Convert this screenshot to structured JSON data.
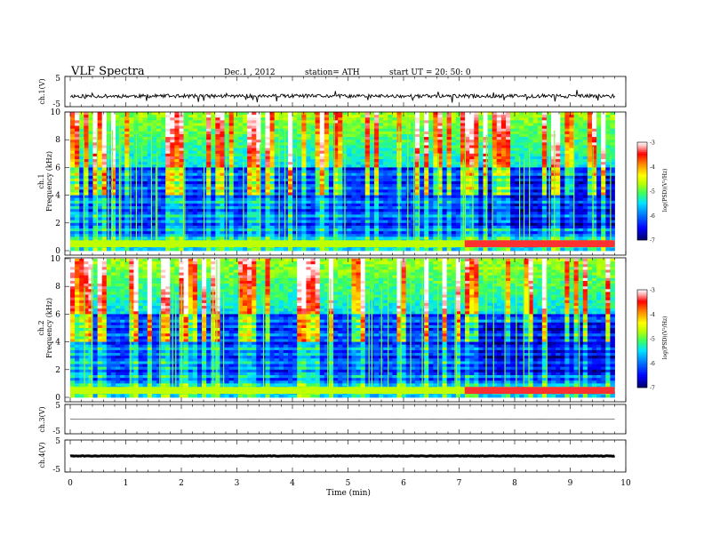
{
  "header": {
    "title": "VLF  Spectra",
    "date": "Dec.1  , 2012",
    "station": "station= ATH",
    "start": "start  UT =   20: 50: 0"
  },
  "chart_data": [
    {
      "type": "line",
      "panel": "ch1-waveform",
      "ylabel": "ch.1(V)",
      "ylim": [
        -5,
        5
      ],
      "y_ticks": [
        "5",
        "-5"
      ],
      "x_range_min": [
        0,
        9.8
      ],
      "baseline": -1.5
    },
    {
      "type": "heatmap",
      "panel": "ch1-spectrogram",
      "ylabel": "ch.1\nFrequency  (kHz)",
      "ylim": [
        0,
        10
      ],
      "y_ticks": [
        "10",
        "8",
        "6",
        "4",
        "2",
        "0"
      ],
      "x_range_min": [
        0,
        9.8
      ],
      "colorbar": {
        "label": "log(PSD)(V²/Hz)",
        "range": [
          -7,
          -3
        ],
        "ticks": [
          "-3",
          "-4",
          "-5",
          "-6",
          "-7"
        ],
        "colors": [
          "#000066",
          "#0000ff",
          "#00a0ff",
          "#00ffff",
          "#40ff40",
          "#c0ff00",
          "#ffff00",
          "#ff8000",
          "#ff0000",
          "#ffc0c0",
          "#ffffff"
        ]
      },
      "features": {
        "strong_line_khz": 0.5,
        "band_change_min": 7.1
      }
    },
    {
      "type": "heatmap",
      "panel": "ch2-spectrogram",
      "ylabel": "ch.2\nFrequency  (kHz)",
      "ylim": [
        0,
        10
      ],
      "y_ticks": [
        "10",
        "8",
        "6",
        "4",
        "2",
        "0"
      ],
      "x_range_min": [
        0,
        9.8
      ],
      "colorbar": {
        "label": "log(PSD)(V²/Hz)",
        "range": [
          -7,
          -3
        ],
        "ticks": [
          "-3",
          "-4",
          "-5",
          "-6",
          "-7"
        ]
      },
      "features": {
        "strong_line_khz": 0.5,
        "band_change_min": 7.1
      }
    },
    {
      "type": "line",
      "panel": "ch3-waveform",
      "ylabel": "ch.3(V)",
      "ylim": [
        -5,
        5
      ],
      "y_ticks": [
        "5",
        "-5"
      ],
      "x_range_min": [
        0,
        9.8
      ],
      "baseline": 0
    },
    {
      "type": "line",
      "panel": "ch4-waveform",
      "ylabel": "ch.4(V)",
      "ylim": [
        -5,
        5
      ],
      "y_ticks": [
        "5",
        "-5"
      ],
      "x_range_min": [
        0,
        9.8
      ],
      "baseline": 0
    }
  ],
  "x_axis": {
    "label": "Time  (min)",
    "range": [
      0,
      10
    ],
    "ticks": [
      "0",
      "1",
      "2",
      "3",
      "4",
      "5",
      "6",
      "7",
      "8",
      "9",
      "10"
    ]
  }
}
